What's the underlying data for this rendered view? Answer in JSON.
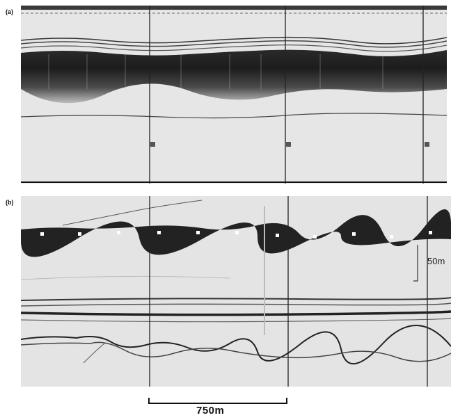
{
  "panels": {
    "a": {
      "label": "(a)"
    },
    "b": {
      "label": "(b)"
    }
  },
  "vertical_scale": {
    "label": "50m"
  },
  "horizontal_scale": {
    "label": "750m"
  }
}
